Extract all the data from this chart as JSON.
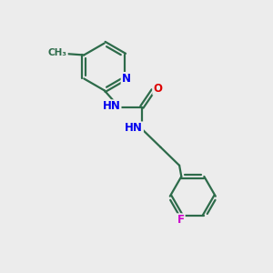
{
  "background_color": "#ececec",
  "bond_color": "#2d6b4a",
  "N_color": "#0000ee",
  "O_color": "#dd0000",
  "F_color": "#cc00cc",
  "line_width": 1.6,
  "figsize": [
    3.0,
    3.0
  ],
  "dpi": 100,
  "xlim": [
    0,
    10
  ],
  "ylim": [
    0,
    10
  ]
}
